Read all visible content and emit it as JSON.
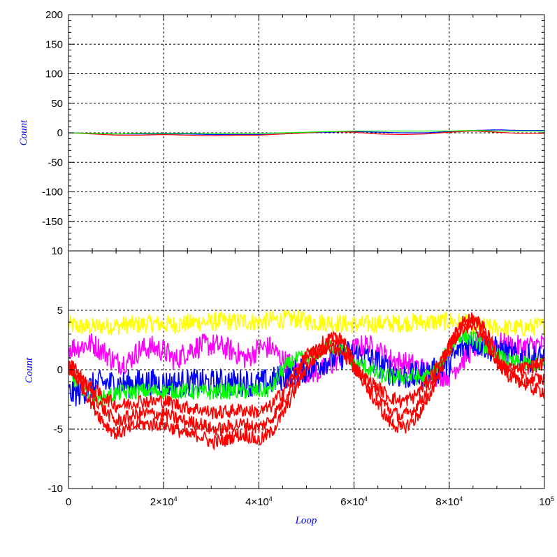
{
  "chart_data": [
    {
      "type": "line",
      "panel": "top",
      "ylabel": "Count",
      "xlim": [
        0,
        100000
      ],
      "ylim": [
        -200,
        200
      ],
      "grid": true,
      "y_ticks": [
        {
          "value": 200,
          "label": "200"
        },
        {
          "value": 150,
          "label": "150"
        },
        {
          "value": 100,
          "label": "100"
        },
        {
          "value": 50,
          "label": "50"
        },
        {
          "value": 0,
          "label": "0"
        },
        {
          "value": -50,
          "label": "-50"
        },
        {
          "value": -100,
          "label": "-100"
        },
        {
          "value": -150,
          "label": "-150"
        }
      ],
      "x": [
        0,
        5000,
        10000,
        15000,
        20000,
        25000,
        30000,
        35000,
        40000,
        45000,
        50000,
        55000,
        60000,
        65000,
        70000,
        75000,
        80000,
        85000,
        90000,
        95000,
        100000
      ],
      "series": [
        {
          "color": "#0000ff",
          "values": [
            0,
            -1,
            -2,
            -2,
            -2,
            -2,
            -3,
            -3,
            -3,
            -2,
            0,
            1,
            2,
            1,
            0,
            0,
            2,
            4,
            5,
            4,
            4
          ]
        },
        {
          "color": "#ff0000",
          "values": [
            0,
            -2,
            -4,
            -4,
            -3,
            -4,
            -5,
            -4,
            -4,
            -2,
            0,
            2,
            1,
            -2,
            -3,
            -2,
            1,
            3,
            1,
            -1,
            -1
          ]
        },
        {
          "color": "#00ff00",
          "values": [
            0,
            -1,
            -2,
            -1,
            -1,
            -1,
            -1,
            -1,
            -1,
            0,
            1,
            2,
            3,
            3,
            3,
            3,
            3,
            4,
            3,
            3,
            3
          ]
        }
      ]
    },
    {
      "type": "line",
      "panel": "bottom",
      "ylabel": "Count",
      "xlabel": "Loop",
      "xlim": [
        0,
        100000
      ],
      "ylim": [
        -10,
        10
      ],
      "grid": true,
      "y_ticks": [
        {
          "value": 10,
          "label": "10"
        },
        {
          "value": 5,
          "label": "5"
        },
        {
          "value": 0,
          "label": "0"
        },
        {
          "value": -5,
          "label": "-5"
        },
        {
          "value": -10,
          "label": "-10"
        }
      ],
      "x_ticks": [
        {
          "value": 0,
          "label": "0"
        },
        {
          "value": 20000,
          "label": "2×10",
          "sup": "4"
        },
        {
          "value": 40000,
          "label": "4×10",
          "sup": "4"
        },
        {
          "value": 60000,
          "label": "6×10",
          "sup": "4"
        },
        {
          "value": 80000,
          "label": "8×10",
          "sup": "4"
        },
        {
          "value": 100000,
          "label": "10",
          "sup": "5"
        }
      ],
      "x": [
        0,
        2500,
        5000,
        7500,
        10000,
        12500,
        15000,
        17500,
        20000,
        22500,
        25000,
        27500,
        30000,
        32500,
        35000,
        37500,
        40000,
        42500,
        45000,
        47500,
        50000,
        52500,
        55000,
        57500,
        60000,
        62500,
        65000,
        67500,
        70000,
        72500,
        75000,
        77500,
        80000,
        82500,
        85000,
        87500,
        90000,
        92500,
        95000,
        97500,
        100000
      ],
      "series": [
        {
          "color": "#ffff00",
          "band": 0.8,
          "values": [
            3.8,
            3.6,
            3.6,
            3.7,
            3.7,
            3.8,
            3.8,
            3.9,
            3.8,
            3.8,
            3.9,
            4.0,
            4.0,
            4.1,
            4.0,
            4.1,
            4.0,
            4.2,
            4.2,
            4.3,
            4.1,
            4.0,
            4.0,
            3.9,
            3.8,
            3.8,
            3.9,
            3.9,
            3.9,
            4.0,
            4.0,
            4.0,
            4.1,
            4.0,
            3.8,
            3.6,
            3.5,
            3.5,
            3.5,
            3.6,
            3.7
          ]
        },
        {
          "color": "#ff00ff",
          "band": 1.0,
          "values": [
            1.8,
            2.0,
            2.2,
            1.5,
            0.6,
            0.7,
            1.7,
            1.9,
            1.6,
            0.8,
            1.6,
            2.0,
            2.1,
            1.9,
            1.5,
            0.9,
            1.8,
            1.9,
            0.8,
            0.3,
            -0.2,
            -0.2,
            0.3,
            1.3,
            1.7,
            2.1,
            1.6,
            0.9,
            0.6,
            0.4,
            -0.1,
            -0.5,
            -0.4,
            0.7,
            1.8,
            2.2,
            2.3,
            2.0,
            1.9,
            2.0,
            2.1
          ]
        },
        {
          "color": "#0000ff",
          "band": 1.2,
          "values": [
            -2.0,
            -1.9,
            -1.4,
            -1.1,
            -1.2,
            -1.2,
            -1.1,
            -1.1,
            -1.2,
            -1.2,
            -1.1,
            -1.1,
            -1.2,
            -1.1,
            -1.1,
            -1.1,
            -1.2,
            -1.0,
            -0.6,
            -0.2,
            0.1,
            0.5,
            0.9,
            1.2,
            1.3,
            1.0,
            0.5,
            -0.1,
            -0.5,
            -0.6,
            -0.3,
            -0.1,
            0.6,
            1.8,
            2.4,
            2.0,
            1.6,
            1.2,
            1.0,
            1.0,
            0.9
          ]
        },
        {
          "color": "#00ff00",
          "band": 0.7,
          "values": [
            -0.4,
            -1.3,
            -2.2,
            -2.4,
            -2.0,
            -1.9,
            -1.8,
            -1.8,
            -1.8,
            -1.8,
            -1.8,
            -1.9,
            -1.9,
            -1.8,
            -1.8,
            -1.8,
            -1.8,
            -1.7,
            0.0,
            0.8,
            1.0,
            1.5,
            2.0,
            1.8,
            0.5,
            0.2,
            -0.4,
            -0.6,
            -0.6,
            -0.6,
            -0.7,
            0.0,
            1.8,
            2.9,
            2.6,
            2.0,
            1.2,
            0.7,
            0.5,
            0.4,
            0.4
          ]
        },
        {
          "color": "#ff0000",
          "band": 0.6,
          "values": [
            0.1,
            -1.2,
            -2.9,
            -4.5,
            -5.4,
            -5.0,
            -4.6,
            -4.6,
            -4.6,
            -5.0,
            -5.5,
            -5.5,
            -6.1,
            -6.0,
            -5.5,
            -5.5,
            -6.0,
            -5.3,
            -3.8,
            -1.8,
            0.2,
            1.3,
            2.4,
            2.6,
            0.5,
            -1.4,
            -3.0,
            -4.4,
            -5.0,
            -4.3,
            -3.0,
            -0.6,
            1.6,
            3.4,
            4.2,
            3.4,
            1.3,
            -0.4,
            -1.0,
            -1.6,
            -1.8
          ]
        },
        {
          "color": "#ff0000",
          "band": 0.6,
          "values": [
            0.6,
            -0.5,
            -2.0,
            -3.4,
            -4.4,
            -4.0,
            -3.7,
            -3.7,
            -3.7,
            -4.1,
            -4.4,
            -4.5,
            -5.0,
            -5.0,
            -4.6,
            -4.6,
            -4.9,
            -4.2,
            -2.7,
            -0.8,
            1.2,
            2.0,
            2.7,
            2.3,
            0.3,
            -1.2,
            -2.2,
            -3.4,
            -4.0,
            -3.4,
            -2.0,
            0.0,
            2.0,
            3.9,
            4.4,
            3.0,
            0.6,
            -0.5,
            -0.8,
            -0.8,
            -0.8
          ]
        },
        {
          "color": "#ff0000",
          "band": 0.6,
          "values": [
            0.3,
            -0.8,
            -1.6,
            -2.3,
            -3.0,
            -2.9,
            -2.6,
            -2.7,
            -2.6,
            -2.9,
            -3.2,
            -3.3,
            -3.6,
            -3.6,
            -3.4,
            -3.4,
            -3.6,
            -3.1,
            -1.8,
            -0.3,
            1.1,
            1.6,
            1.9,
            1.4,
            0.2,
            -0.8,
            -1.5,
            -2.3,
            -2.7,
            -2.3,
            -1.2,
            0.3,
            1.9,
            3.5,
            3.8,
            2.6,
            0.5,
            0.0,
            0.0,
            0.3,
            0.5
          ]
        }
      ]
    }
  ],
  "axes": {
    "ylabel_top": "Count",
    "ylabel_bottom": "Count",
    "xlabel": "Loop"
  }
}
